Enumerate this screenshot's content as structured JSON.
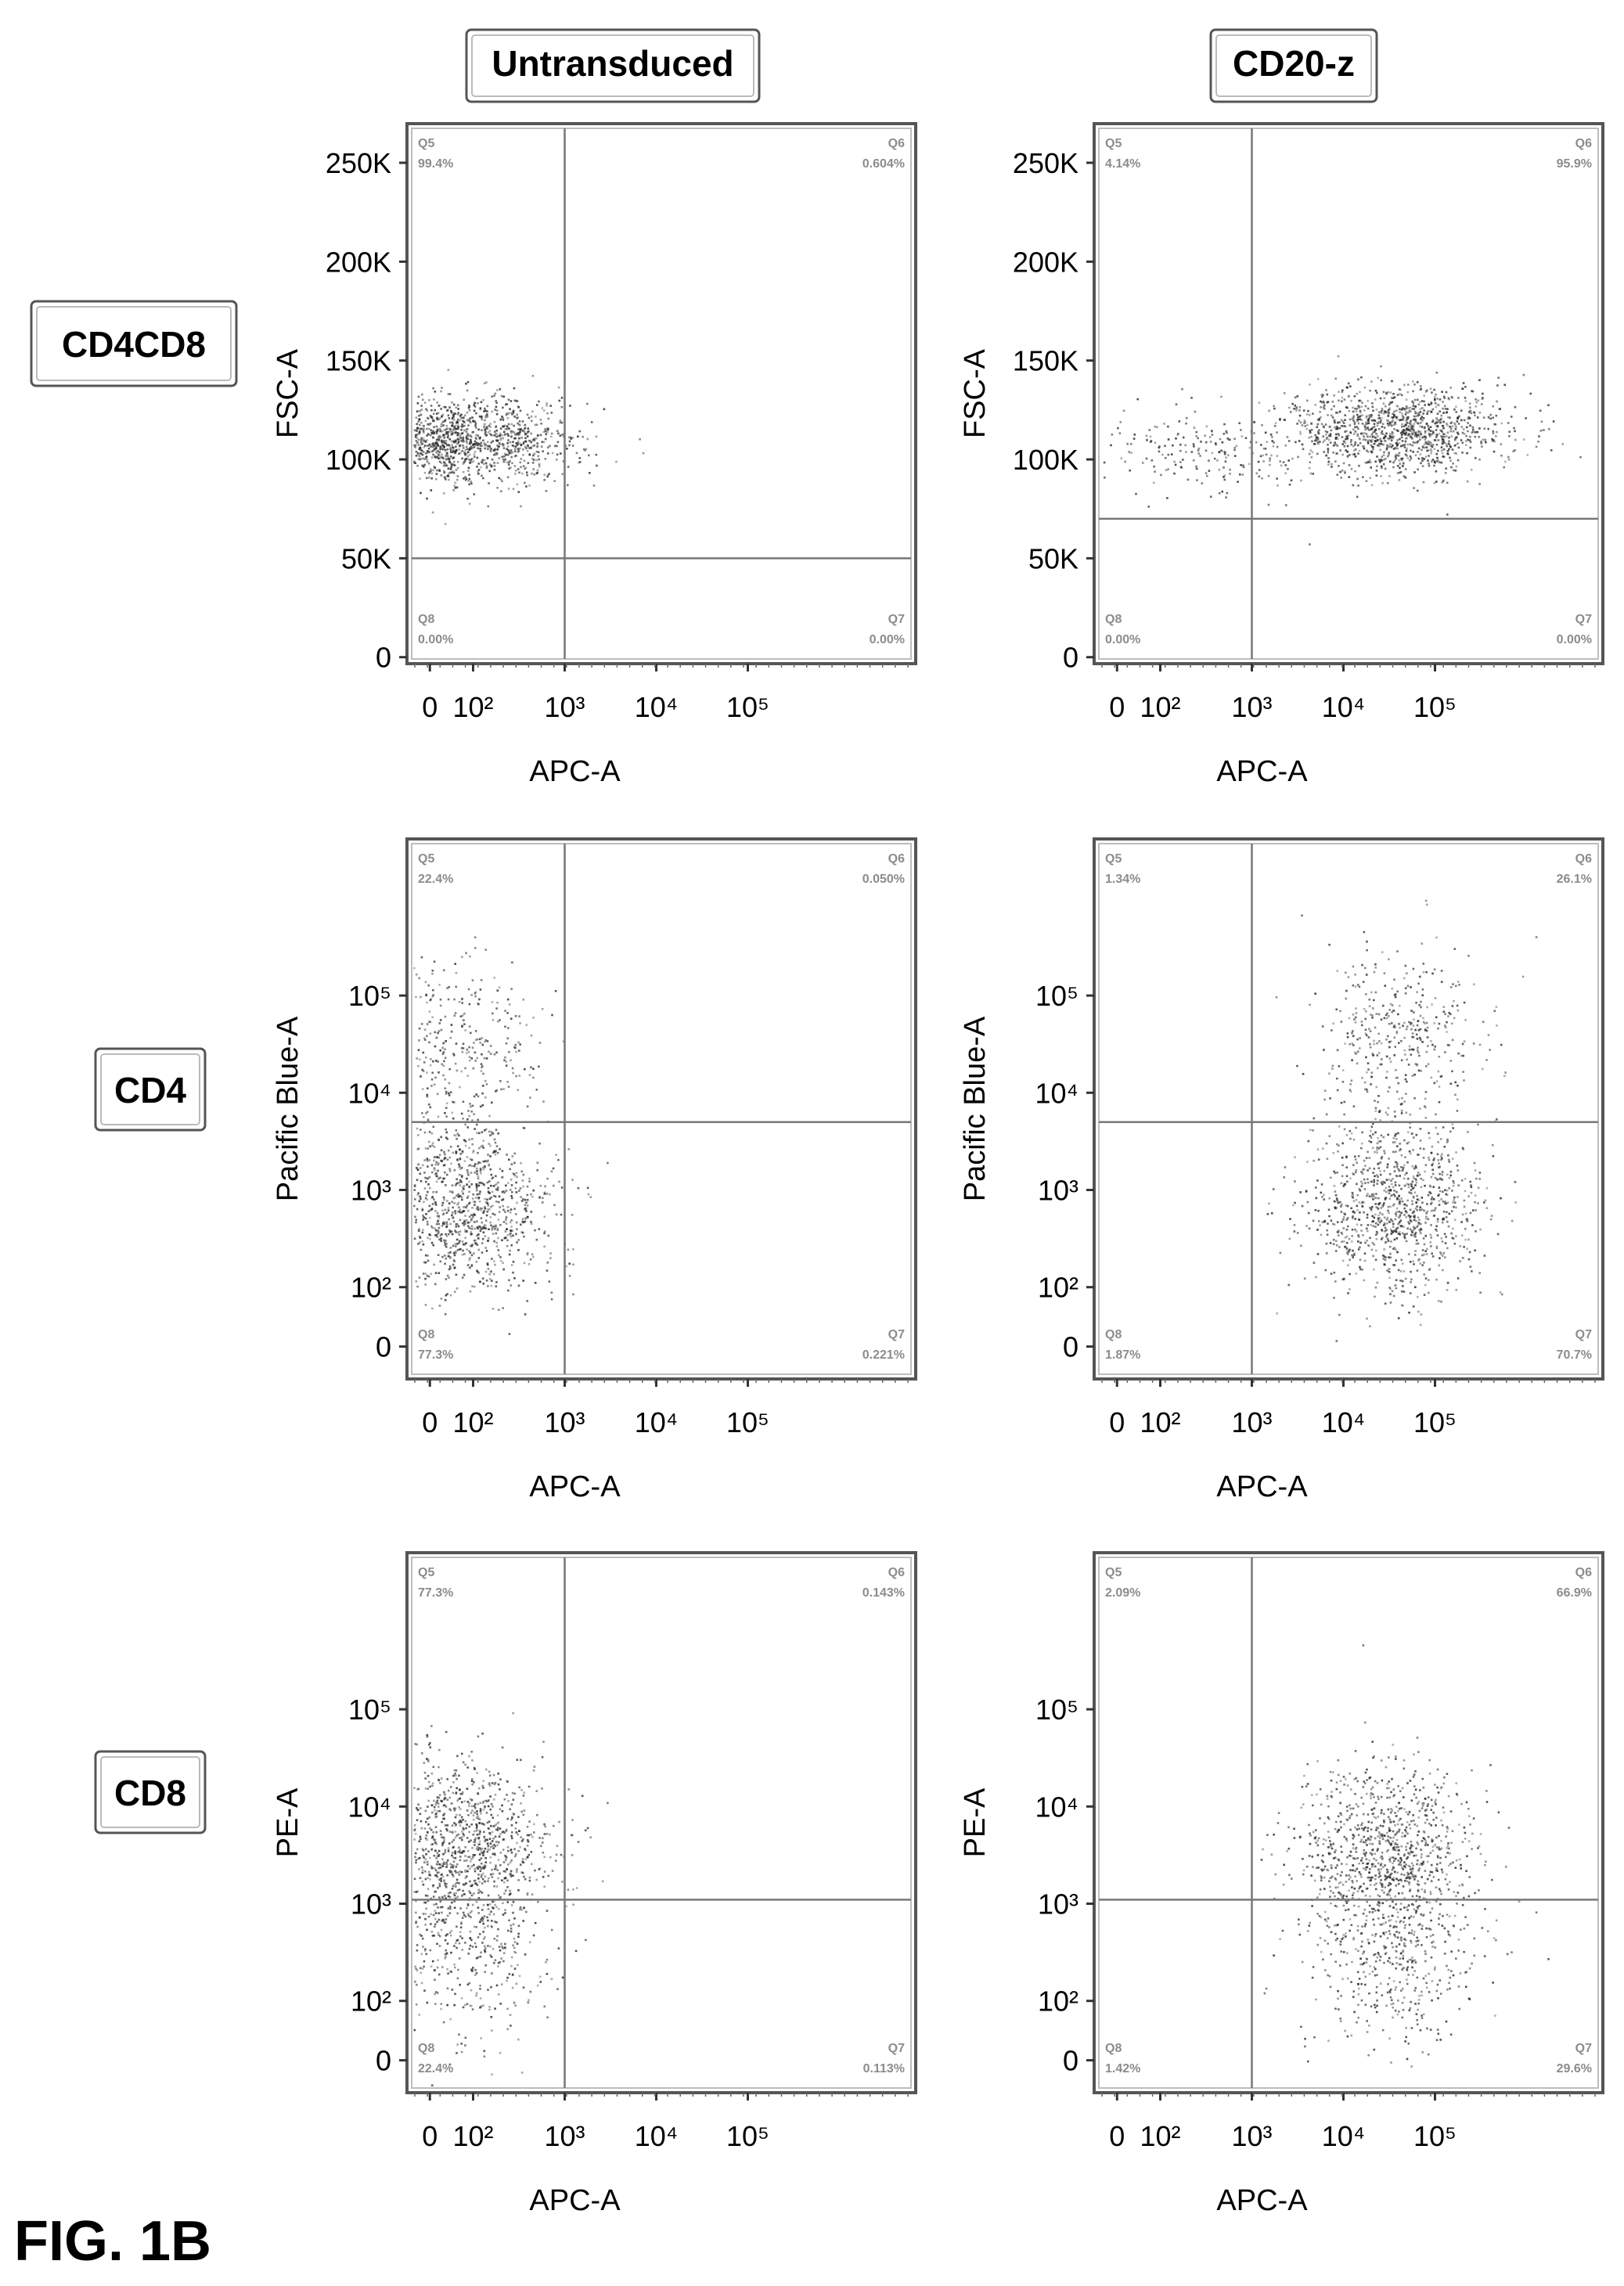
{
  "figure_label": "FIG. 1B",
  "columns": [
    "Untransduced",
    "CD20-z"
  ],
  "rows": [
    "CD4CD8",
    "CD4",
    "CD8"
  ],
  "chart_data": [
    {
      "type": "scatter",
      "row": "CD4CD8",
      "column": "Untransduced",
      "xlabel": "APC-A",
      "ylabel": "FSC-A",
      "x_scale": "biexponential",
      "x_ticks": [
        "0",
        "10²",
        "10³",
        "10⁴",
        "10⁵"
      ],
      "y_ticks": [
        "0",
        "50K",
        "100K",
        "150K",
        "200K",
        "250K"
      ],
      "gate": {
        "x": 1000,
        "y": 50000
      },
      "quadrants": {
        "Q5": "99.4%",
        "Q6": "0.604%",
        "Q7": "0.00%",
        "Q8": "0.00%"
      },
      "populations": [
        {
          "x": 60,
          "y": 110000,
          "weight": 1.0
        }
      ]
    },
    {
      "type": "scatter",
      "row": "CD4CD8",
      "column": "CD20-z",
      "xlabel": "APC-A",
      "ylabel": "FSC-A",
      "x_scale": "biexponential",
      "x_ticks": [
        "0",
        "10²",
        "10³",
        "10⁴",
        "10⁵"
      ],
      "y_ticks": [
        "0",
        "50K",
        "100K",
        "150K",
        "200K",
        "250K"
      ],
      "gate": {
        "x": 1000,
        "y": 70000
      },
      "quadrants": {
        "Q5": "4.14%",
        "Q6": "95.9%",
        "Q7": "0.00%",
        "Q8": "0.00%"
      },
      "populations": [
        {
          "x": 40000,
          "y": 115000,
          "weight": 0.85
        },
        {
          "x": 300,
          "y": 105000,
          "weight": 0.15
        }
      ]
    },
    {
      "type": "scatter",
      "row": "CD4",
      "column": "Untransduced",
      "xlabel": "APC-A",
      "ylabel": "Pacific Blue-A",
      "x_scale": "biexponential",
      "y_scale": "biexponential",
      "x_ticks": [
        "0",
        "10²",
        "10³",
        "10⁴",
        "10⁵"
      ],
      "y_ticks": [
        "0",
        "10²",
        "10³",
        "10⁴",
        "10⁵"
      ],
      "gate": {
        "x": 1000,
        "y": 5000
      },
      "quadrants": {
        "Q5": "22.4%",
        "Q6": "0.050%",
        "Q7": "0.221%",
        "Q8": "77.3%"
      },
      "populations": [
        {
          "x": 60,
          "y": 35000,
          "weight": 0.25
        },
        {
          "x": 80,
          "y": 700,
          "weight": 0.75
        }
      ]
    },
    {
      "type": "scatter",
      "row": "CD4",
      "column": "CD20-z",
      "xlabel": "APC-A",
      "ylabel": "Pacific Blue-A",
      "x_scale": "biexponential",
      "y_scale": "biexponential",
      "x_ticks": [
        "0",
        "10²",
        "10³",
        "10⁴",
        "10⁵"
      ],
      "y_ticks": [
        "0",
        "10²",
        "10³",
        "10⁴",
        "10⁵"
      ],
      "gate": {
        "x": 1000,
        "y": 5000
      },
      "quadrants": {
        "Q5": "1.34%",
        "Q6": "26.1%",
        "Q7": "70.7%",
        "Q8": "1.87%"
      },
      "populations": [
        {
          "x": 40000,
          "y": 40000,
          "weight": 0.28
        },
        {
          "x": 35000,
          "y": 700,
          "weight": 0.72
        }
      ]
    },
    {
      "type": "scatter",
      "row": "CD8",
      "column": "Untransduced",
      "xlabel": "APC-A",
      "ylabel": "PE-A",
      "x_scale": "biexponential",
      "y_scale": "biexponential",
      "x_ticks": [
        "0",
        "10²",
        "10³",
        "10⁴",
        "10⁵"
      ],
      "y_ticks": [
        "0",
        "10²",
        "10³",
        "10⁴",
        "10⁵"
      ],
      "gate": {
        "x": 1000,
        "y": 1100
      },
      "quadrants": {
        "Q5": "77.3%",
        "Q6": "0.143%",
        "Q7": "0.113%",
        "Q8": "22.4%"
      },
      "populations": [
        {
          "x": 80,
          "y": 4000,
          "weight": 0.75
        },
        {
          "x": 80,
          "y": 300,
          "weight": 0.25
        }
      ]
    },
    {
      "type": "scatter",
      "row": "CD8",
      "column": "CD20-z",
      "xlabel": "APC-A",
      "ylabel": "PE-A",
      "x_scale": "biexponential",
      "y_scale": "biexponential",
      "x_ticks": [
        "0",
        "10²",
        "10³",
        "10⁴",
        "10⁵"
      ],
      "y_ticks": [
        "0",
        "10²",
        "10³",
        "10⁴",
        "10⁵"
      ],
      "gate": {
        "x": 1000,
        "y": 1100
      },
      "quadrants": {
        "Q5": "2.09%",
        "Q6": "66.9%",
        "Q7": "29.6%",
        "Q8": "1.42%"
      },
      "populations": [
        {
          "x": 30000,
          "y": 3500,
          "weight": 0.68
        },
        {
          "x": 35000,
          "y": 300,
          "weight": 0.32
        }
      ]
    }
  ]
}
